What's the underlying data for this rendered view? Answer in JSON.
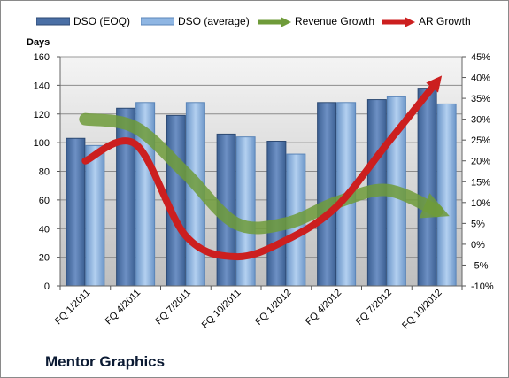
{
  "company_label": "Mentor Graphics",
  "legend": {
    "dso_eoq": "DSO (EOQ)",
    "dso_avg": "DSO (average)",
    "revenue_growth": "Revenue Growth",
    "ar_growth": "AR Growth"
  },
  "colors": {
    "dso_eoq": "#4a6fa5",
    "dso_avg": "#8fb6e3",
    "revenue_growth": "#6f9b3a",
    "ar_growth": "#cc1f1f",
    "plot_bg_top": "#f4f4f4",
    "plot_bg_bottom": "#bfbfbf"
  },
  "chart_data": {
    "type": "bar",
    "categories": [
      "FQ 1/2011",
      "FQ 4/2011",
      "FQ 7/2011",
      "FQ 10/2011",
      "FQ 1/2012",
      "FQ 4/2012",
      "FQ 7/2012",
      "FQ 10/2012"
    ],
    "series": [
      {
        "name": "DSO (EOQ)",
        "type": "bar",
        "axis": "left",
        "values": [
          103,
          124,
          119,
          106,
          101,
          128,
          130,
          138
        ]
      },
      {
        "name": "DSO (average)",
        "type": "bar",
        "axis": "left",
        "values": [
          98,
          128,
          128,
          104,
          92,
          128,
          132,
          127
        ]
      },
      {
        "name": "Revenue Growth",
        "type": "line",
        "axis": "right",
        "values": [
          30,
          28,
          17,
          5,
          5,
          10,
          13,
          8
        ]
      },
      {
        "name": "AR Growth",
        "type": "line",
        "axis": "right",
        "values": [
          20,
          24,
          2,
          -3,
          1,
          9,
          24,
          39
        ]
      }
    ],
    "ylabel": "Days",
    "ylim": [
      0,
      160
    ],
    "yticks": [
      "0",
      "20",
      "40",
      "60",
      "80",
      "100",
      "120",
      "140",
      "160"
    ],
    "y2lim": [
      -10,
      45
    ],
    "y2ticks": [
      "-10%",
      "-5%",
      "0%",
      "5%",
      "10%",
      "15%",
      "20%",
      "25%",
      "30%",
      "35%",
      "40%",
      "45%"
    ],
    "grid": true,
    "legend_position": "top"
  }
}
